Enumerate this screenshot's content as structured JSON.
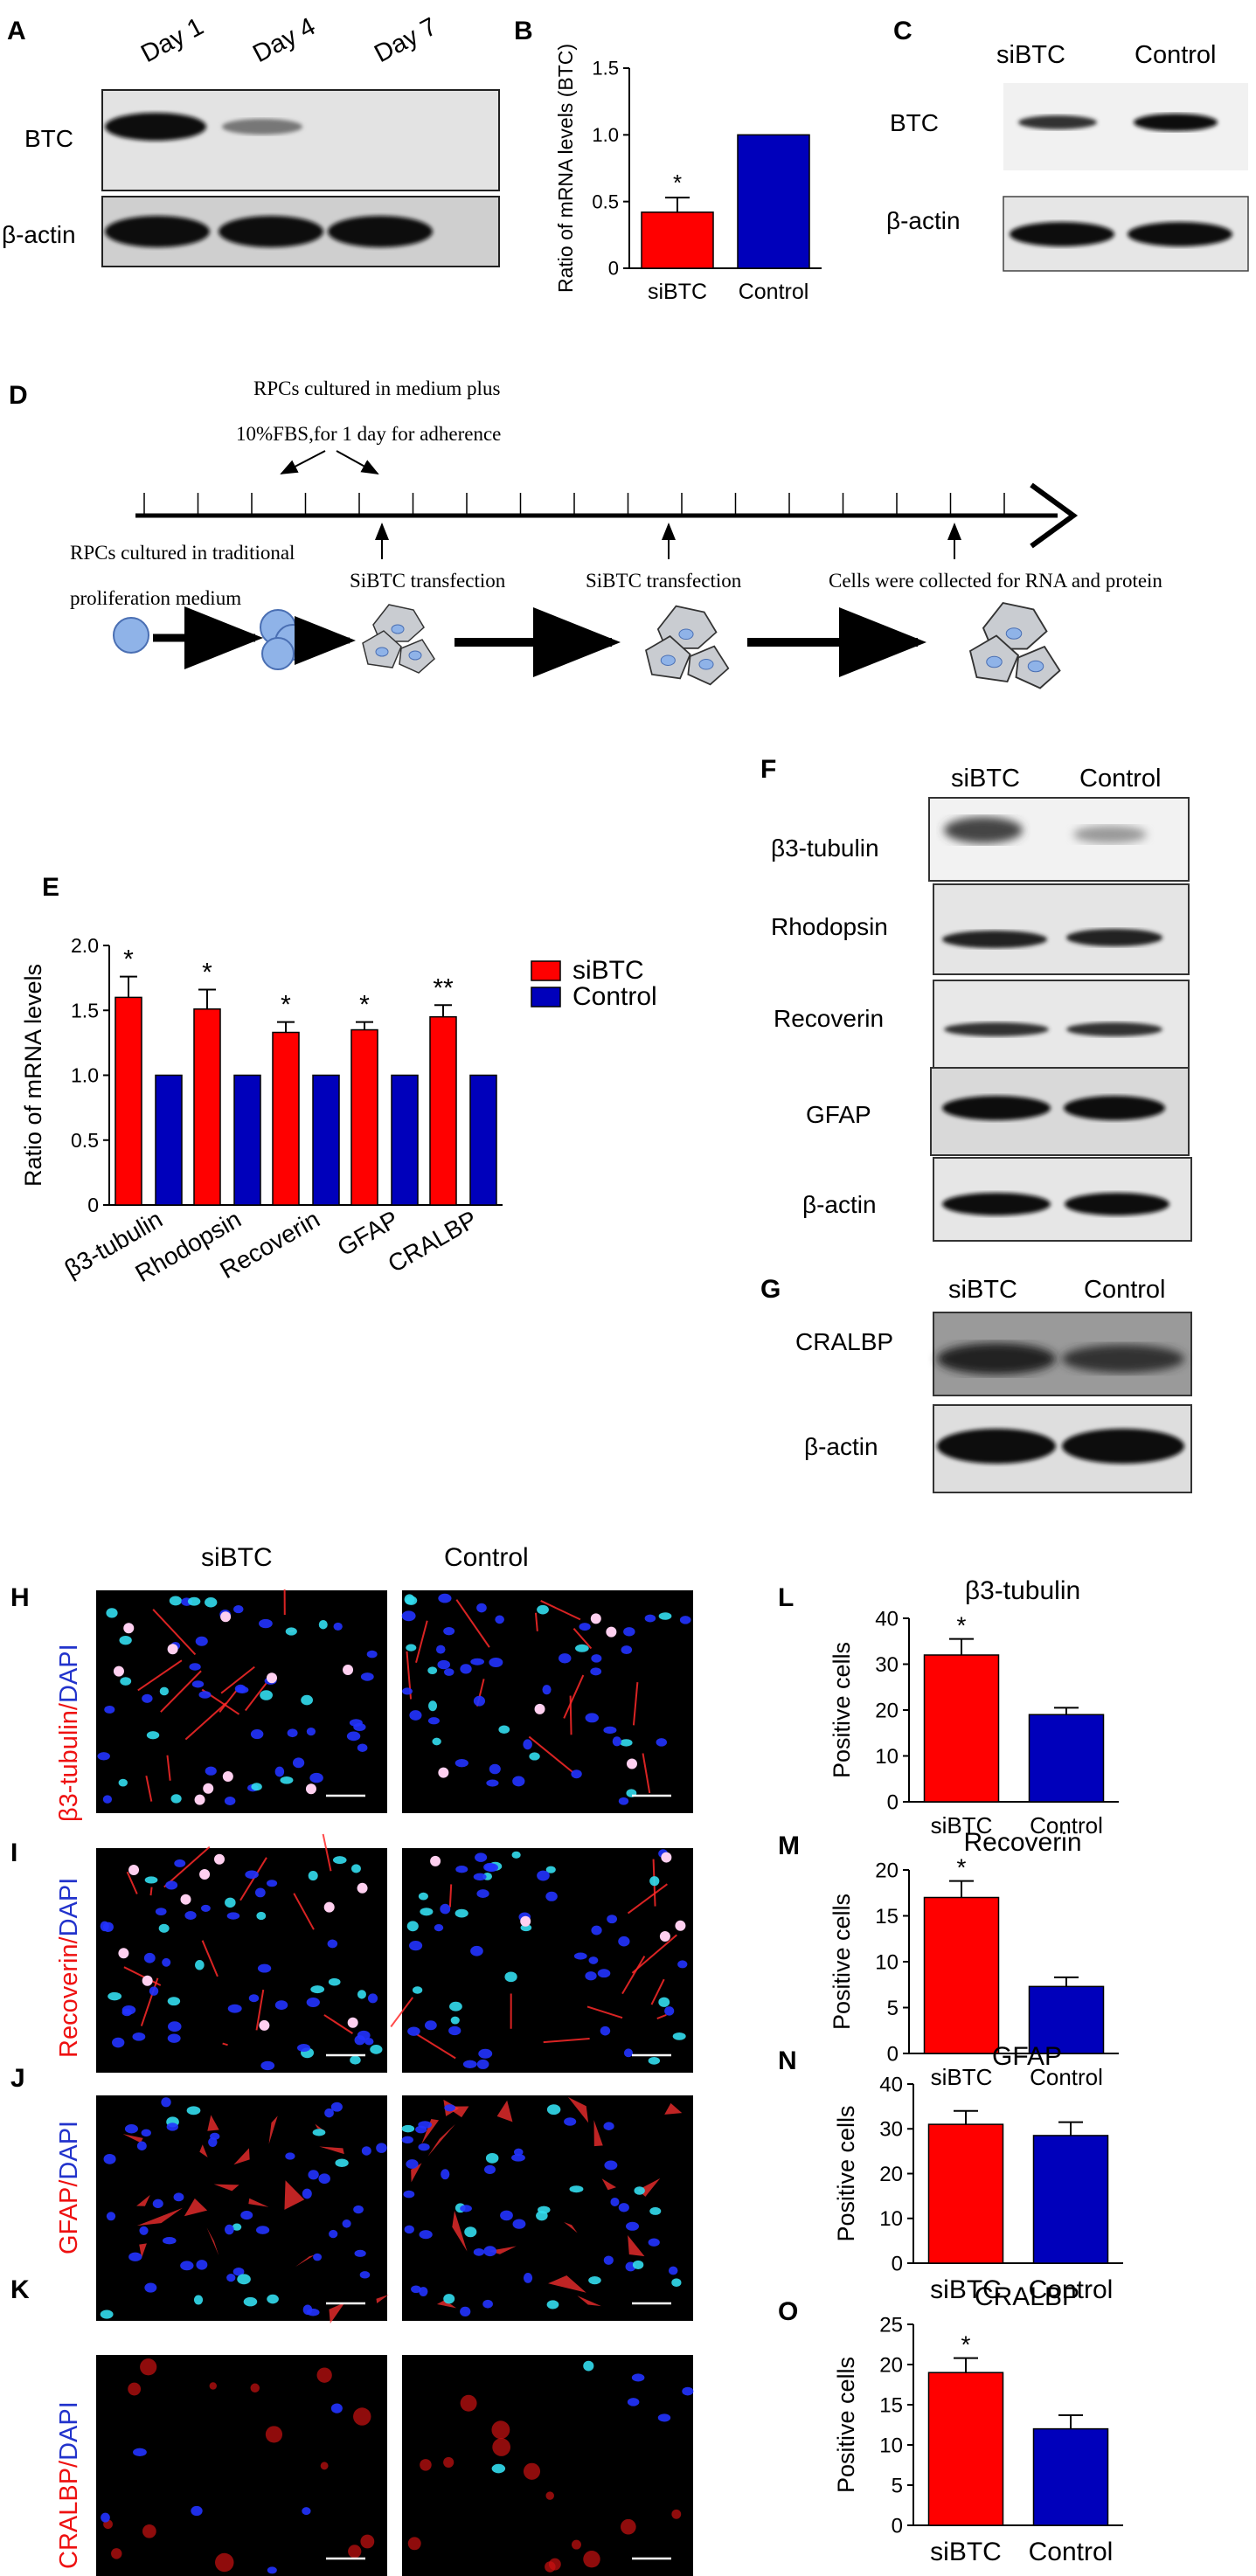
{
  "panel_letters": {
    "A": "A",
    "B": "B",
    "C": "C",
    "D": "D",
    "E": "E",
    "F": "F",
    "G": "G",
    "H": "H",
    "I": "I",
    "J": "J",
    "K": "K",
    "L": "L",
    "M": "M",
    "N": "N",
    "O": "O"
  },
  "colors": {
    "sibtc": "#ff0000",
    "control": "#0000bb",
    "blot_bg": "#d9d9d9",
    "band": "#111111",
    "dapi": "#2233ff",
    "marker": "#ff2222",
    "cyan": "#33ddee"
  },
  "panel_a": {
    "lanes": [
      "Day 1",
      "Day 4",
      "Day 7"
    ],
    "rows": [
      "BTC",
      "β-actin"
    ]
  },
  "panel_c": {
    "lanes": [
      "siBTC",
      "Control"
    ],
    "rows": [
      "BTC",
      "β-actin"
    ]
  },
  "panel_d": {
    "top_note_1": "RPCs  cultured  in  medium plus",
    "top_note_2": "10%FBS,for 1 day for adherence",
    "left_note_1": "RPCs cultured in traditional",
    "left_note_2": "proliferation medium",
    "event_1": "SiBTC transfection",
    "event_2": "SiBTC transfection",
    "event_3": "Cells were collected for RNA and protein"
  },
  "panel_f": {
    "lanes": [
      "siBTC",
      "Control"
    ],
    "rows": [
      "β3-tubulin",
      "Rhodopsin",
      "Recoverin",
      "GFAP",
      "β-actin"
    ]
  },
  "panel_g": {
    "lanes": [
      "siBTC",
      "Control"
    ],
    "rows": [
      "CRALBP",
      "β-actin"
    ]
  },
  "micro": {
    "columns": [
      "siBTC",
      "Control"
    ],
    "rows": [
      {
        "marker": "β3-tubulin",
        "sep": "/",
        "dapi": "DAPI"
      },
      {
        "marker": "Recoverin",
        "sep": "/",
        "dapi": "DAPI"
      },
      {
        "marker": "GFAP",
        "sep": "/",
        "dapi": "DAPI"
      },
      {
        "marker": "CRALBP",
        "sep": "/",
        "dapi": "DAPI"
      }
    ]
  },
  "chart_data": [
    {
      "panel": "B",
      "type": "bar",
      "categories": [
        "siBTC",
        "Control"
      ],
      "values": [
        0.42,
        1.0
      ],
      "errors": [
        0.11,
        0
      ],
      "significance": [
        "*",
        ""
      ],
      "ylabel": "Ratio of mRNA levels (BTC)",
      "ylim": [
        0,
        1.5
      ],
      "yticks": [
        "0",
        "0.5",
        "1.0",
        "1.5"
      ],
      "grid": false
    },
    {
      "panel": "E",
      "type": "bar",
      "categories": [
        "β3-tubulin",
        "Rhodopsin",
        "Recoverin",
        "GFAP",
        "CRALBP"
      ],
      "series": [
        {
          "name": "siBTC",
          "values": [
            1.6,
            1.51,
            1.33,
            1.35,
            1.45
          ],
          "errors": [
            0.16,
            0.15,
            0.08,
            0.06,
            0.09
          ]
        },
        {
          "name": "Control",
          "values": [
            1.0,
            1.0,
            1.0,
            1.0,
            1.0
          ],
          "errors": [
            0,
            0,
            0,
            0,
            0
          ]
        }
      ],
      "significance": [
        "*",
        "*",
        "*",
        "*",
        "**"
      ],
      "ylabel": "Ratio of mRNA levels",
      "ylim": [
        0,
        2.0
      ],
      "yticks": [
        "0",
        "0.5",
        "1.0",
        "1.5",
        "2.0"
      ],
      "legend": "top-right",
      "grid": false
    },
    {
      "panel": "L",
      "type": "bar",
      "title": "β3-tubulin",
      "categories": [
        "siBTC",
        "Control"
      ],
      "values": [
        32,
        19
      ],
      "errors": [
        3.5,
        1.5
      ],
      "significance": [
        "*",
        ""
      ],
      "ylabel": "Positive cells",
      "ylim": [
        0,
        40
      ],
      "yticks": [
        "0",
        "10",
        "20",
        "30",
        "40"
      ],
      "grid": false
    },
    {
      "panel": "M",
      "type": "bar",
      "title": "Recoverin",
      "categories": [
        "siBTC",
        "Control"
      ],
      "values": [
        17,
        7.3
      ],
      "errors": [
        1.8,
        1.0
      ],
      "significance": [
        "*",
        ""
      ],
      "ylabel": "Positive cells",
      "ylim": [
        0,
        20
      ],
      "yticks": [
        "0",
        "5",
        "10",
        "15",
        "20"
      ],
      "grid": false
    },
    {
      "panel": "N",
      "type": "bar",
      "title": "GFAP",
      "categories": [
        "siBTC",
        "Control"
      ],
      "values": [
        31,
        28.5
      ],
      "errors": [
        3,
        3
      ],
      "significance": [
        "",
        ""
      ],
      "ylabel": "Positive cells",
      "ylim": [
        0,
        40
      ],
      "yticks": [
        "0",
        "10",
        "20",
        "30",
        "40"
      ],
      "grid": false
    },
    {
      "panel": "O",
      "type": "bar",
      "title": "CRALBP",
      "categories": [
        "siBTC",
        "Control"
      ],
      "values": [
        19,
        12
      ],
      "errors": [
        1.8,
        1.7
      ],
      "significance": [
        "*",
        ""
      ],
      "ylabel": "Positive cells",
      "ylim": [
        0,
        25
      ],
      "yticks": [
        "0",
        "5",
        "10",
        "15",
        "20",
        "25"
      ],
      "grid": false
    }
  ]
}
